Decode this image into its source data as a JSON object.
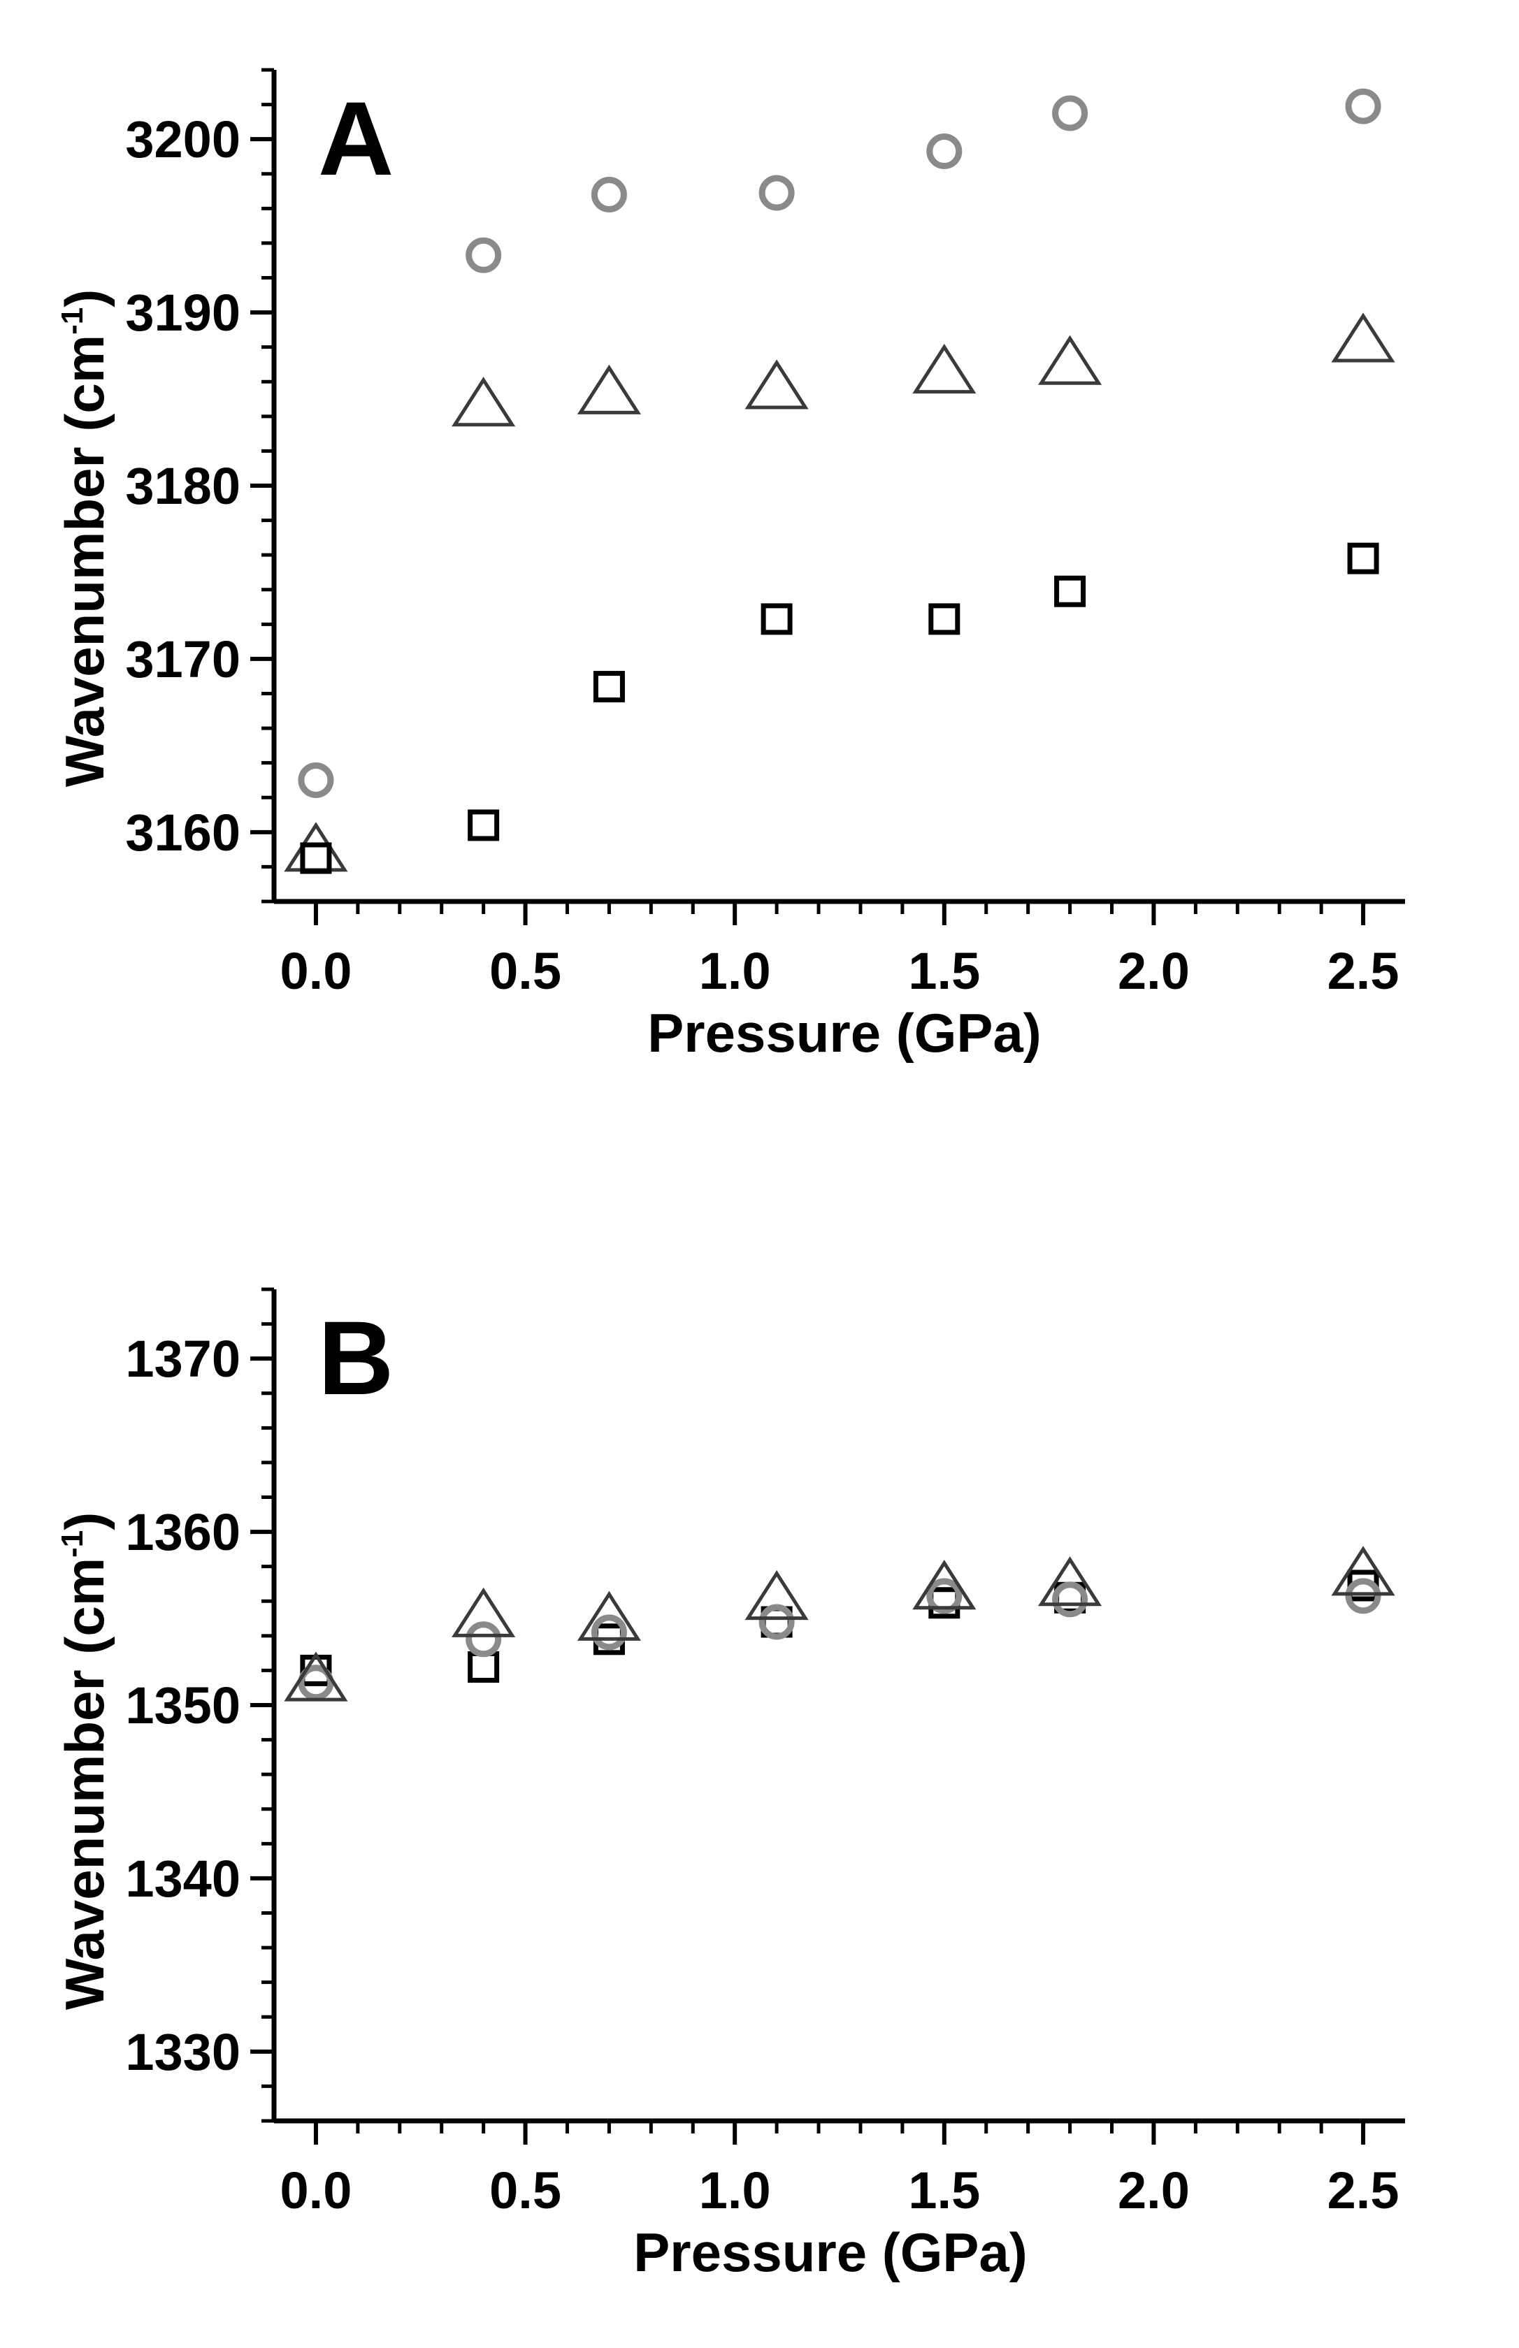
{
  "chart_data": [
    {
      "type": "scatter",
      "panel_label": "A",
      "xlabel": "Pressure (GPa)",
      "ylabel_main": "Wavenumber (cm",
      "ylabel_sup": "-1",
      "ylabel_close": ")",
      "xlim": [
        -0.1,
        2.6
      ],
      "ylim": [
        3156,
        3204
      ],
      "xticks": [
        0.0,
        0.5,
        1.0,
        1.5,
        2.0,
        2.5
      ],
      "xtick_labels": [
        "0.0",
        "0.5",
        "1.0",
        "1.5",
        "2.0",
        "2.5"
      ],
      "yticks": [
        3160,
        3170,
        3180,
        3190,
        3200
      ],
      "ytick_labels": [
        "3160",
        "3170",
        "3180",
        "3190",
        "3200"
      ],
      "grid": false,
      "series": [
        {
          "marker": "circle",
          "color": "#8a8a8a",
          "x": [
            0.0,
            0.4,
            0.7,
            1.1,
            1.5,
            1.8,
            2.5
          ],
          "y": [
            3163.0,
            3193.3,
            3196.8,
            3196.9,
            3199.3,
            3201.5,
            3201.9
          ]
        },
        {
          "marker": "triangle",
          "color": "#3a3a3a",
          "x": [
            0.0,
            0.4,
            0.7,
            1.1,
            1.5,
            1.8,
            2.5
          ],
          "y": [
            3158.8,
            3184.5,
            3185.2,
            3185.5,
            3186.4,
            3186.9,
            3188.2
          ]
        },
        {
          "marker": "square",
          "color": "#000000",
          "x": [
            0.0,
            0.4,
            0.7,
            1.1,
            1.5,
            1.8,
            2.5
          ],
          "y": [
            3158.5,
            3160.4,
            3168.4,
            3172.3,
            3172.3,
            3173.9,
            3175.8
          ]
        }
      ]
    },
    {
      "type": "scatter",
      "panel_label": "B",
      "xlabel": "Pressure (GPa)",
      "ylabel_main": "Wavenumber (cm",
      "ylabel_sup": "-1",
      "ylabel_close": ")",
      "xlim": [
        -0.1,
        2.6
      ],
      "ylim": [
        1326,
        1374
      ],
      "xticks": [
        0.0,
        0.5,
        1.0,
        1.5,
        2.0,
        2.5
      ],
      "xtick_labels": [
        "0.0",
        "0.5",
        "1.0",
        "1.5",
        "2.0",
        "2.5"
      ],
      "yticks": [
        1330,
        1340,
        1350,
        1360,
        1370
      ],
      "ytick_labels": [
        "1330",
        "1340",
        "1350",
        "1360",
        "1370"
      ],
      "grid": false,
      "series": [
        {
          "marker": "square",
          "color": "#000000",
          "x": [
            0.0,
            0.4,
            0.7,
            1.1,
            1.5,
            1.8,
            2.5
          ],
          "y": [
            1352.0,
            1352.2,
            1353.8,
            1354.8,
            1355.9,
            1356.2,
            1356.9
          ]
        },
        {
          "marker": "circle",
          "color": "#8a8a8a",
          "x": [
            0.0,
            0.4,
            0.7,
            1.1,
            1.5,
            1.8,
            2.5
          ],
          "y": [
            1351.3,
            1353.8,
            1354.2,
            1354.8,
            1356.3,
            1356.1,
            1356.3
          ]
        },
        {
          "marker": "triangle",
          "color": "#3a3a3a",
          "x": [
            0.0,
            0.4,
            0.7,
            1.1,
            1.5,
            1.8,
            2.5
          ],
          "y": [
            1351.3,
            1355.0,
            1354.8,
            1356.0,
            1356.6,
            1356.8,
            1357.4
          ]
        }
      ]
    }
  ]
}
